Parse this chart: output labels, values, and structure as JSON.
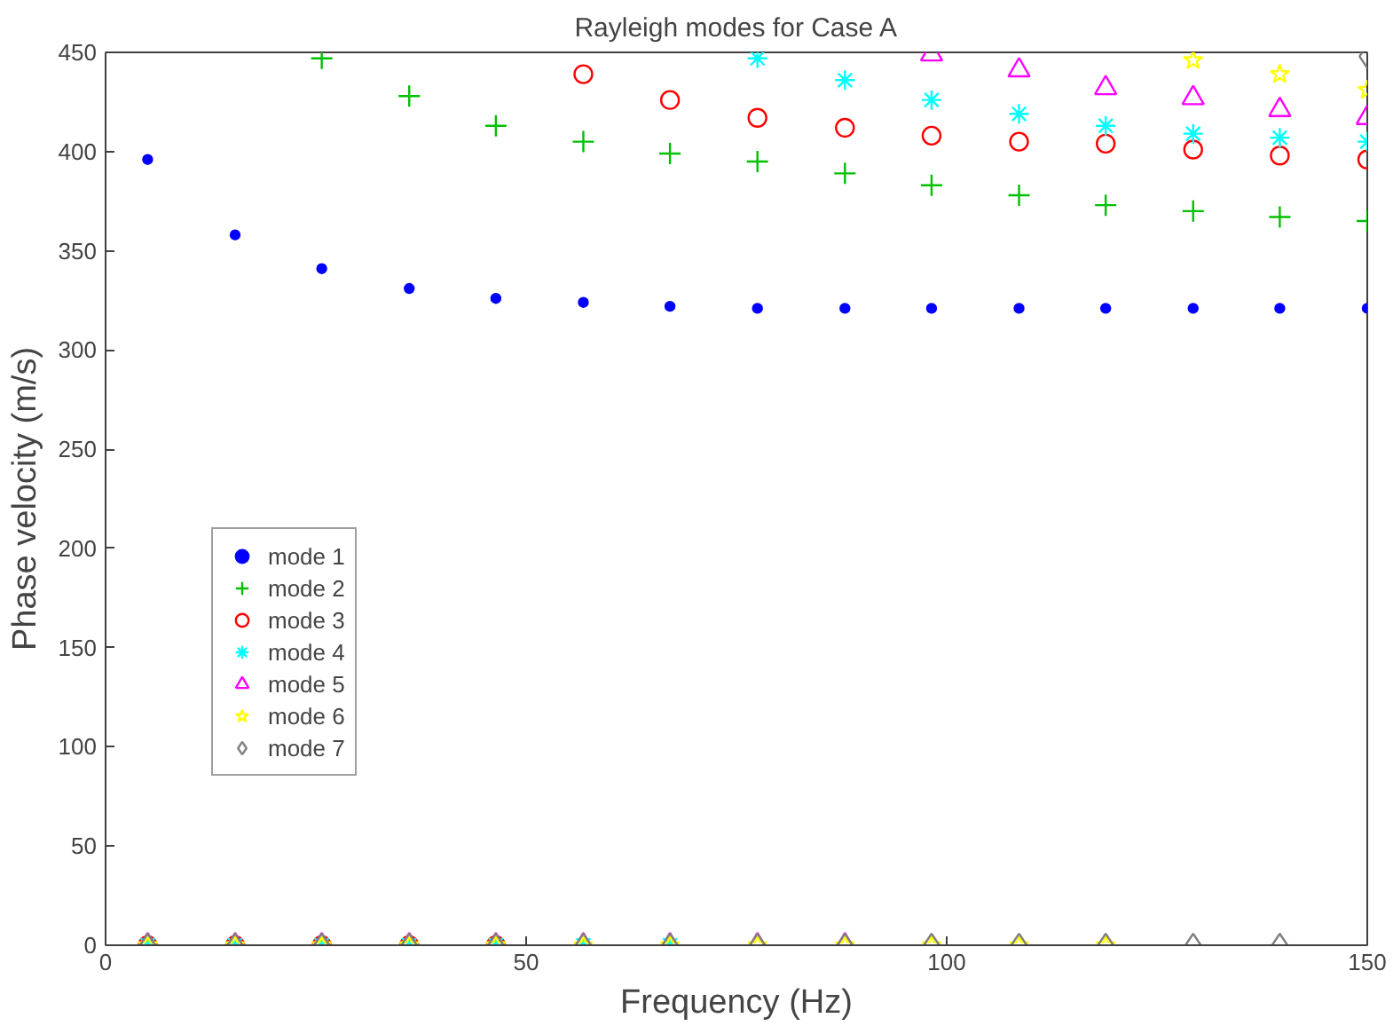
{
  "chart_data": {
    "type": "scatter",
    "title": "Rayleigh modes for Case A",
    "xlabel": "Frequency (Hz)",
    "ylabel": "Phase velocity (m/s)",
    "x": [
      5,
      15.4,
      25.7,
      36.1,
      46.4,
      56.8,
      67.1,
      77.5,
      87.9,
      98.2,
      108.6,
      118.9,
      129.3,
      139.6,
      150
    ],
    "series": [
      {
        "name": "mode 1",
        "color": "#0000ff",
        "marker": "point",
        "values": [
          396,
          358,
          341,
          331,
          326,
          324,
          322,
          321,
          321,
          321,
          321,
          321,
          321,
          321,
          321
        ]
      },
      {
        "name": "mode 2",
        "color": "#00c000",
        "marker": "cross",
        "values": [
          0,
          0,
          447,
          428,
          413,
          405,
          399,
          395,
          389,
          383,
          378,
          373,
          370,
          367,
          365
        ]
      },
      {
        "name": "mode 3",
        "color": "#ff0000",
        "marker": "circle",
        "values": [
          0,
          0,
          0,
          0,
          0,
          439,
          426,
          417,
          412,
          408,
          405,
          404,
          401,
          398,
          396
        ]
      },
      {
        "name": "mode 4",
        "color": "#00ffff",
        "values": [
          0,
          0,
          0,
          0,
          0,
          0,
          0,
          447,
          436,
          426,
          419,
          413,
          409,
          407,
          405
        ]
      },
      {
        "name": "mode 5",
        "color": "#ff00ff",
        "marker": "triangle",
        "values": [
          0,
          0,
          0,
          0,
          0,
          0,
          0,
          0,
          0,
          449,
          441,
          432,
          427,
          421,
          417
        ]
      },
      {
        "name": "mode 6",
        "color": "#ffff00",
        "marker": "star",
        "values": [
          0,
          0,
          0,
          0,
          0,
          0,
          0,
          0,
          0,
          0,
          0,
          0,
          446,
          439,
          431
        ]
      },
      {
        "name": "mode 7",
        "color": "#808080",
        "marker": "diamond",
        "values": [
          0,
          0,
          0,
          0,
          0,
          0,
          0,
          0,
          0,
          0,
          0,
          0,
          0,
          0,
          448
        ]
      }
    ],
    "xlim": [
      0,
      150
    ],
    "ylim": [
      0,
      450
    ],
    "xticks": [
      0,
      50,
      100,
      150
    ],
    "yticks": [
      0,
      50,
      100,
      150,
      200,
      250,
      300,
      350,
      400,
      450
    ],
    "legend": "left",
    "grid": false
  }
}
